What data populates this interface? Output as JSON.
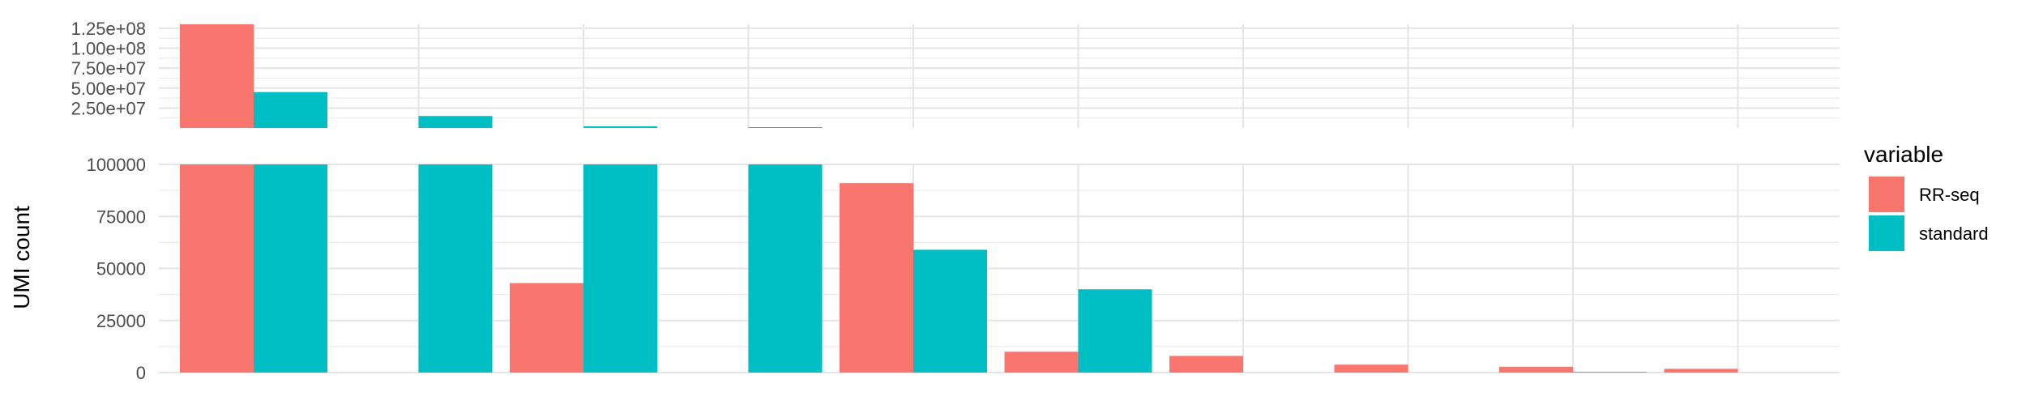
{
  "chart_data": {
    "type": "bar",
    "ylabel": "UMI count",
    "legend": {
      "title": "variable",
      "position": "right",
      "items": [
        {
          "label": "RR-seq",
          "color": "#F8766D"
        },
        {
          "label": "standard",
          "color": "#00BFC4"
        }
      ]
    },
    "broken_axis": true,
    "panels": [
      {
        "name": "upper",
        "ylim": [
          0,
          130000000
        ],
        "yticks": [
          25000000,
          50000000,
          75000000,
          100000000,
          125000000
        ],
        "yticklabels": [
          "2.50e+07",
          "5.00e+07",
          "7.50e+07",
          "1.00e+08",
          "1.25e+08"
        ]
      },
      {
        "name": "lower",
        "ylim": [
          0,
          100000
        ],
        "yticks": [
          0,
          25000,
          50000,
          75000,
          100000
        ],
        "yticklabels": [
          "0",
          "25000",
          "50000",
          "75000",
          "100000"
        ]
      }
    ],
    "grid": true,
    "group_count": 10,
    "series": [
      {
        "name": "RR-seq",
        "color": "#F8766D",
        "values": [
          130000000,
          0,
          43000,
          0,
          91000,
          10000,
          8000,
          3800,
          2800,
          1800
        ]
      },
      {
        "name": "standard",
        "color": "#00BFC4",
        "values": [
          45000000,
          15000000,
          2000000,
          1000000,
          59000,
          40000,
          0,
          0,
          300,
          0
        ]
      }
    ]
  }
}
